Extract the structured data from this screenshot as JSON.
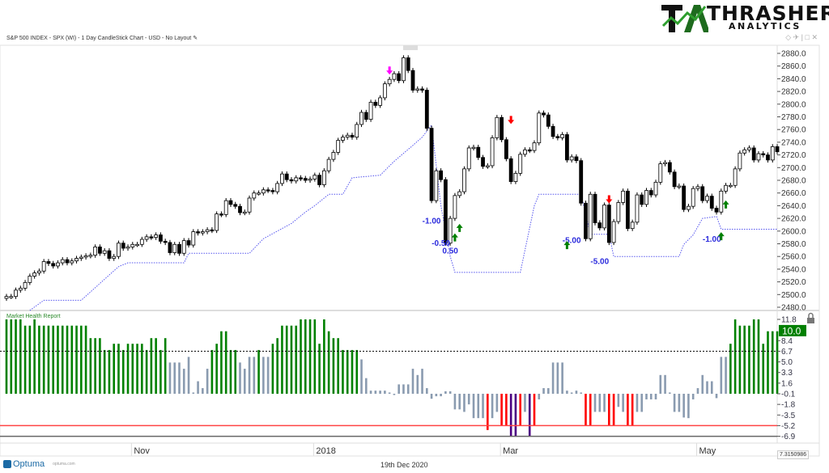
{
  "header": {
    "logo_title": "THRASHER",
    "logo_sub": "ANALYTICS",
    "chart_title": "S&P 500 INDEX - SPX (WI) - 1 Day CandleStick Chart - USD - No Layout",
    "window_controls": "◇ ✈ | □ ✕"
  },
  "footer": {
    "date": "19th Dec 2020",
    "brand": "Optuma",
    "brand_url": "optuma.com",
    "readout": "7.3150986"
  },
  "colors": {
    "up": "#ffffff",
    "down": "#000000",
    "stop": "#5555ee",
    "green": "#008000",
    "gray": "#8a9bb0",
    "red": "#ff0000",
    "purple": "#4b0082",
    "annot": "#2b2bdd"
  },
  "chart_data": [
    {
      "type": "candlestick",
      "title": "S&P 500 INDEX - SPX (WI) - 1 Day CandleStick Chart",
      "ylim": [
        2480,
        2880
      ],
      "yticks": [
        2880,
        2860,
        2840,
        2820,
        2800,
        2780,
        2760,
        2740,
        2720,
        2700,
        2680,
        2660,
        2640,
        2620,
        2600,
        2580,
        2560,
        2540,
        2520,
        2500,
        2480
      ],
      "xlabels": [
        {
          "label": "Nov",
          "bar": 29
        },
        {
          "label": "2018",
          "bar": 68
        },
        {
          "label": "Mar",
          "bar": 108
        },
        {
          "label": "May",
          "bar": 150
        }
      ],
      "closes": [
        2497,
        2497,
        2507,
        2510,
        2519,
        2529,
        2534,
        2537,
        2552,
        2549,
        2545,
        2550,
        2555,
        2550,
        2553,
        2557,
        2559,
        2561,
        2562,
        2575,
        2565,
        2569,
        2557,
        2560,
        2581,
        2573,
        2575,
        2579,
        2579,
        2587,
        2591,
        2590,
        2594,
        2584,
        2582,
        2566,
        2579,
        2565,
        2585,
        2578,
        2599,
        2597,
        2599,
        2602,
        2601,
        2627,
        2626,
        2648,
        2642,
        2639,
        2629,
        2630,
        2652,
        2660,
        2660,
        2665,
        2664,
        2662,
        2675,
        2690,
        2681,
        2679,
        2684,
        2683,
        2680,
        2682,
        2688,
        2673,
        2695,
        2713,
        2724,
        2743,
        2748,
        2751,
        2748,
        2768,
        2787,
        2776,
        2803,
        2798,
        2810,
        2832,
        2839,
        2848,
        2837,
        2873,
        2853,
        2822,
        2824,
        2822,
        2762,
        2648,
        2695,
        2681,
        2581,
        2620,
        2656,
        2662,
        2698,
        2731,
        2732,
        2716,
        2702,
        2703,
        2747,
        2779,
        2744,
        2714,
        2678,
        2691,
        2721,
        2728,
        2727,
        2739,
        2786,
        2783,
        2765,
        2749,
        2747,
        2752,
        2712,
        2717,
        2711,
        2644,
        2588,
        2658,
        2613,
        2605,
        2641,
        2582,
        2615,
        2645,
        2663,
        2604,
        2614,
        2657,
        2642,
        2664,
        2657,
        2677,
        2706,
        2708,
        2693,
        2670,
        2671,
        2634,
        2639,
        2667,
        2670,
        2648,
        2655,
        2636,
        2630,
        2663,
        2672,
        2672,
        2698,
        2723,
        2728,
        2731,
        2712,
        2722,
        2720,
        2712,
        2733,
        2725
      ],
      "stop_line": [
        [
          5,
          2475
        ],
        [
          8,
          2491
        ],
        [
          16,
          2491
        ],
        [
          24,
          2544
        ],
        [
          26,
          2550
        ],
        [
          38,
          2550
        ],
        [
          39,
          2565
        ],
        [
          52,
          2565
        ],
        [
          55,
          2588
        ],
        [
          58,
          2600
        ],
        [
          61,
          2612
        ],
        [
          64,
          2630
        ],
        [
          66,
          2640
        ],
        [
          69,
          2658
        ],
        [
          72,
          2658
        ],
        [
          74,
          2684
        ],
        [
          80,
          2688
        ],
        [
          83,
          2710
        ],
        [
          87,
          2735
        ],
        [
          89,
          2748
        ],
        [
          91,
          2767
        ],
        [
          93,
          2640
        ],
        [
          95,
          2560
        ],
        [
          96,
          2535
        ],
        [
          110,
          2535
        ],
        [
          113,
          2640
        ],
        [
          114,
          2658
        ],
        [
          123,
          2658
        ],
        [
          125,
          2595
        ],
        [
          129,
          2595
        ],
        [
          130,
          2560
        ],
        [
          144,
          2560
        ],
        [
          145,
          2579
        ],
        [
          147,
          2594
        ],
        [
          149,
          2620
        ],
        [
          152,
          2623
        ],
        [
          153,
          2603
        ],
        [
          165,
          2603
        ]
      ],
      "annotations": [
        {
          "text": "-1.00",
          "bar": 91,
          "price": 2612
        },
        {
          "text": "-0.50",
          "bar": 93,
          "price": 2577
        },
        {
          "text": "0.50",
          "bar": 95,
          "price": 2565
        },
        {
          "text": "-5.00",
          "bar": 121,
          "price": 2581
        },
        {
          "text": "-5.00",
          "bar": 127,
          "price": 2548
        },
        {
          "text": "-1.00",
          "bar": 151,
          "price": 2583
        }
      ],
      "arrows": [
        {
          "dir": "down",
          "color": "#ff00ff",
          "bar": 82,
          "price": 2853
        },
        {
          "dir": "down",
          "color": "#ff0000",
          "bar": 108,
          "price": 2775
        },
        {
          "dir": "down",
          "color": "#ff0000",
          "bar": 129,
          "price": 2650
        },
        {
          "dir": "up",
          "color": "#008000",
          "bar": 96,
          "price": 2590
        },
        {
          "dir": "up",
          "color": "#008000",
          "bar": 97,
          "price": 2605
        },
        {
          "dir": "up",
          "color": "#008000",
          "bar": 120,
          "price": 2578
        },
        {
          "dir": "up",
          "color": "#008000",
          "bar": 153,
          "price": 2592
        },
        {
          "dir": "up",
          "color": "#008000",
          "bar": 154,
          "price": 2642
        }
      ]
    },
    {
      "type": "bar",
      "title": "Market Health Report",
      "ylim": [
        -6.9,
        11.8
      ],
      "yticks": [
        11.8,
        8.4,
        6.7,
        5.0,
        3.3,
        1.6,
        -0.1,
        -1.8,
        -3.5,
        -5.2,
        -6.9
      ],
      "current_value": "10.0",
      "current_level": 10.0,
      "threshold_lines": [
        {
          "value": 6.7,
          "style": "dashed"
        },
        {
          "value": -5.2,
          "style": "red"
        },
        {
          "value": -6.9,
          "style": "gray"
        }
      ],
      "values": [
        11.8,
        11.8,
        11.8,
        11.8,
        10.8,
        10.8,
        11.8,
        10.8,
        10.8,
        10.8,
        10.8,
        10.8,
        10.8,
        10.8,
        10.8,
        10.8,
        10.8,
        10.8,
        8.8,
        8.8,
        8.8,
        6.9,
        6.9,
        7.9,
        7.9,
        6.9,
        7.9,
        7.9,
        7.9,
        7.9,
        6.9,
        8.8,
        8.8,
        6.9,
        8.8,
        4.9,
        4.9,
        4.9,
        3.9,
        5.8,
        0.1,
        1.9,
        0.8,
        3.9,
        6.9,
        7.9,
        9.9,
        9.9,
        6.9,
        6.9,
        4.9,
        3.9,
        5.8,
        5.8,
        6.9,
        5.8,
        5.8,
        7.9,
        8.8,
        10.8,
        10.8,
        10.8,
        10.8,
        11.8,
        11.8,
        11.8,
        11.8,
        7.9,
        11.8,
        9.9,
        8.8,
        8.8,
        6.9,
        6.9,
        6.9,
        6.9,
        5.4,
        2.4,
        0.4,
        0.4,
        0.4,
        0.4,
        0.1,
        -0.3,
        1.4,
        1.4,
        1.4,
        3.9,
        2.9,
        3.9,
        0.8,
        -0.9,
        -0.5,
        -0.5,
        0.3,
        0.3,
        -2.6,
        -2.6,
        -3.0,
        -1.8,
        -4.0,
        -4.0,
        -4.0,
        -5.9,
        -4.0,
        -3.0,
        -5.2,
        -5.2,
        -6.9,
        -6.9,
        -5.2,
        -3.0,
        -6.9,
        -5.2,
        -1.0,
        0.8,
        0.8,
        4.9,
        4.9,
        4.9,
        0.4,
        0.1,
        0.4,
        0.1,
        -5.2,
        -5.2,
        -3.0,
        -3.0,
        -3.0,
        -5.2,
        -5.2,
        -2.2,
        -3.0,
        -5.2,
        -5.2,
        -3.0,
        -3.0,
        -1.0,
        -1.0,
        -1.0,
        2.9,
        2.9,
        0.1,
        -3.0,
        -3.0,
        -3.9,
        -4.0,
        -1.0,
        0.8,
        2.9,
        1.9,
        1.9,
        -0.8,
        5.8,
        5.8,
        7.9,
        11.8,
        10.8,
        10.8,
        10.8,
        11.8,
        11.8,
        7.9,
        9.9,
        9.9,
        9.9
      ]
    }
  ]
}
